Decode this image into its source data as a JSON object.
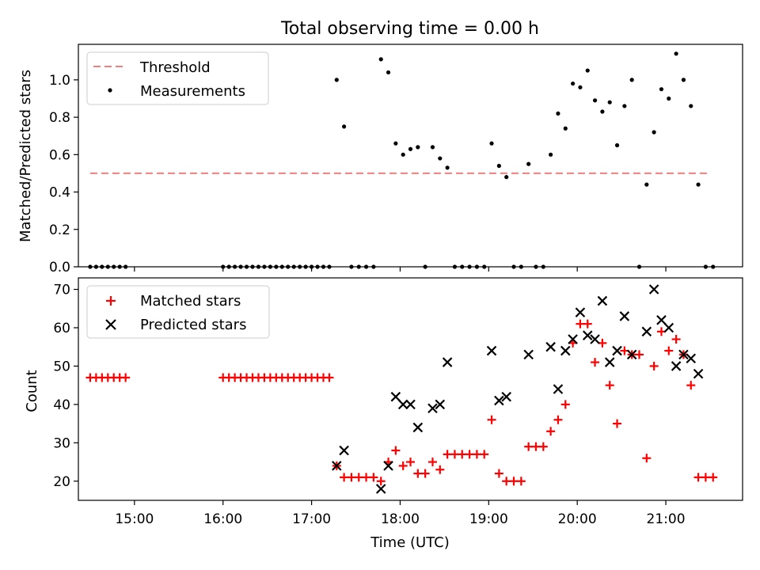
{
  "figure": {
    "title": "Total observing time = 0.00 h"
  },
  "chart_data": [
    {
      "type": "scatter",
      "ylabel": "Matched/Predicted stars",
      "ylim": [
        0,
        1.19
      ],
      "xlim": [
        "14:22",
        "21:52"
      ],
      "yticks": [
        0.0,
        0.2,
        0.4,
        0.6,
        0.8,
        1.0
      ],
      "ytick_labels": [
        "0.0",
        "0.2",
        "0.4",
        "0.6",
        "0.8",
        "1.0"
      ],
      "legend_position": "top-left",
      "threshold": {
        "name": "Threshold",
        "y": 0.5,
        "x_range": [
          "14:30",
          "21:30"
        ],
        "color": "#f08080",
        "style": "dashed"
      },
      "series": [
        {
          "name": "Measurements",
          "color": "#000000",
          "marker": "dot",
          "points": [
            [
              "14:30",
              0
            ],
            [
              "14:34",
              0
            ],
            [
              "14:38",
              0
            ],
            [
              "14:42",
              0
            ],
            [
              "14:46",
              0
            ],
            [
              "14:50",
              0
            ],
            [
              "14:54",
              0
            ],
            [
              "16:00",
              0
            ],
            [
              "16:04",
              0
            ],
            [
              "16:08",
              0
            ],
            [
              "16:12",
              0
            ],
            [
              "16:16",
              0
            ],
            [
              "16:20",
              0
            ],
            [
              "16:24",
              0
            ],
            [
              "16:28",
              0
            ],
            [
              "16:32",
              0
            ],
            [
              "16:36",
              0
            ],
            [
              "16:40",
              0
            ],
            [
              "16:44",
              0
            ],
            [
              "16:48",
              0
            ],
            [
              "16:52",
              0
            ],
            [
              "16:56",
              0
            ],
            [
              "17:00",
              0
            ],
            [
              "17:04",
              0
            ],
            [
              "17:08",
              0
            ],
            [
              "17:12",
              0
            ],
            [
              "17:17",
              1.0
            ],
            [
              "17:22",
              0.75
            ],
            [
              "17:27",
              0
            ],
            [
              "17:32",
              0
            ],
            [
              "17:37",
              0
            ],
            [
              "17:42",
              0
            ],
            [
              "17:47",
              1.11
            ],
            [
              "17:52",
              1.04
            ],
            [
              "17:57",
              0.66
            ],
            [
              "18:02",
              0.6
            ],
            [
              "18:07",
              0.63
            ],
            [
              "18:12",
              0.64
            ],
            [
              "18:17",
              0
            ],
            [
              "18:22",
              0.64
            ],
            [
              "18:27",
              0.58
            ],
            [
              "18:32",
              0.53
            ],
            [
              "18:37",
              0
            ],
            [
              "18:42",
              0
            ],
            [
              "18:47",
              0
            ],
            [
              "18:52",
              0
            ],
            [
              "18:57",
              0
            ],
            [
              "19:02",
              0.66
            ],
            [
              "19:07",
              0.54
            ],
            [
              "19:12",
              0.48
            ],
            [
              "19:17",
              0
            ],
            [
              "19:22",
              0
            ],
            [
              "19:27",
              0.55
            ],
            [
              "19:32",
              0
            ],
            [
              "19:37",
              0
            ],
            [
              "19:42",
              0.6
            ],
            [
              "19:47",
              0.82
            ],
            [
              "19:52",
              0.74
            ],
            [
              "19:57",
              0.98
            ],
            [
              "20:02",
              0.96
            ],
            [
              "20:07",
              1.05
            ],
            [
              "20:12",
              0.89
            ],
            [
              "20:17",
              0.83
            ],
            [
              "20:22",
              0.88
            ],
            [
              "20:27",
              0.65
            ],
            [
              "20:32",
              0.86
            ],
            [
              "20:37",
              1.0
            ],
            [
              "20:42",
              0
            ],
            [
              "20:47",
              0.44
            ],
            [
              "20:52",
              0.72
            ],
            [
              "20:57",
              0.95
            ],
            [
              "21:02",
              0.9
            ],
            [
              "21:07",
              1.14
            ],
            [
              "21:12",
              1.0
            ],
            [
              "21:17",
              0.86
            ],
            [
              "21:22",
              0.44
            ],
            [
              "21:27",
              0
            ],
            [
              "21:32",
              0
            ]
          ]
        }
      ]
    },
    {
      "type": "scatter",
      "xlabel": "Time (UTC)",
      "ylabel": "Count",
      "ylim": [
        15,
        73
      ],
      "xlim": [
        "14:22",
        "21:52"
      ],
      "yticks": [
        20,
        30,
        40,
        50,
        60,
        70
      ],
      "ytick_labels": [
        "20",
        "30",
        "40",
        "50",
        "60",
        "70"
      ],
      "xticks": [
        "15:00",
        "16:00",
        "17:00",
        "18:00",
        "19:00",
        "20:00",
        "21:00"
      ],
      "legend_position": "top-left",
      "series": [
        {
          "name": "Matched stars",
          "color": "#ff0000",
          "marker": "plus",
          "points": [
            [
              "14:30",
              47
            ],
            [
              "14:34",
              47
            ],
            [
              "14:38",
              47
            ],
            [
              "14:42",
              47
            ],
            [
              "14:46",
              47
            ],
            [
              "14:50",
              47
            ],
            [
              "14:54",
              47
            ],
            [
              "16:00",
              47
            ],
            [
              "16:04",
              47
            ],
            [
              "16:08",
              47
            ],
            [
              "16:12",
              47
            ],
            [
              "16:16",
              47
            ],
            [
              "16:20",
              47
            ],
            [
              "16:24",
              47
            ],
            [
              "16:28",
              47
            ],
            [
              "16:32",
              47
            ],
            [
              "16:36",
              47
            ],
            [
              "16:40",
              47
            ],
            [
              "16:44",
              47
            ],
            [
              "16:48",
              47
            ],
            [
              "16:52",
              47
            ],
            [
              "16:56",
              47
            ],
            [
              "17:00",
              47
            ],
            [
              "17:04",
              47
            ],
            [
              "17:08",
              47
            ],
            [
              "17:12",
              47
            ],
            [
              "17:17",
              24
            ],
            [
              "17:22",
              21
            ],
            [
              "17:27",
              21
            ],
            [
              "17:32",
              21
            ],
            [
              "17:37",
              21
            ],
            [
              "17:42",
              21
            ],
            [
              "17:47",
              20
            ],
            [
              "17:52",
              25
            ],
            [
              "17:57",
              28
            ],
            [
              "18:02",
              24
            ],
            [
              "18:07",
              25
            ],
            [
              "18:12",
              22
            ],
            [
              "18:17",
              22
            ],
            [
              "18:22",
              25
            ],
            [
              "18:27",
              23
            ],
            [
              "18:32",
              27
            ],
            [
              "18:37",
              27
            ],
            [
              "18:42",
              27
            ],
            [
              "18:47",
              27
            ],
            [
              "18:52",
              27
            ],
            [
              "18:57",
              27
            ],
            [
              "19:02",
              36
            ],
            [
              "19:07",
              22
            ],
            [
              "19:12",
              20
            ],
            [
              "19:17",
              20
            ],
            [
              "19:22",
              20
            ],
            [
              "19:27",
              29
            ],
            [
              "19:32",
              29
            ],
            [
              "19:37",
              29
            ],
            [
              "19:42",
              33
            ],
            [
              "19:47",
              36
            ],
            [
              "19:52",
              40
            ],
            [
              "19:57",
              56
            ],
            [
              "20:02",
              61
            ],
            [
              "20:07",
              61
            ],
            [
              "20:12",
              51
            ],
            [
              "20:17",
              56
            ],
            [
              "20:22",
              45
            ],
            [
              "20:27",
              35
            ],
            [
              "20:32",
              54
            ],
            [
              "20:37",
              53
            ],
            [
              "20:42",
              53
            ],
            [
              "20:47",
              26
            ],
            [
              "20:52",
              50
            ],
            [
              "20:57",
              59
            ],
            [
              "21:02",
              54
            ],
            [
              "21:07",
              57
            ],
            [
              "21:12",
              53
            ],
            [
              "21:17",
              45
            ],
            [
              "21:22",
              21
            ],
            [
              "21:27",
              21
            ],
            [
              "21:32",
              21
            ]
          ]
        },
        {
          "name": "Predicted stars",
          "color": "#000000",
          "marker": "x",
          "points": [
            [
              "17:17",
              24
            ],
            [
              "17:22",
              28
            ],
            [
              "17:47",
              18
            ],
            [
              "17:52",
              24
            ],
            [
              "17:57",
              42
            ],
            [
              "18:02",
              40
            ],
            [
              "18:07",
              40
            ],
            [
              "18:12",
              34
            ],
            [
              "18:22",
              39
            ],
            [
              "18:27",
              40
            ],
            [
              "18:32",
              51
            ],
            [
              "19:02",
              54
            ],
            [
              "19:07",
              41
            ],
            [
              "19:12",
              42
            ],
            [
              "19:27",
              53
            ],
            [
              "19:42",
              55
            ],
            [
              "19:47",
              44
            ],
            [
              "19:52",
              54
            ],
            [
              "19:57",
              57
            ],
            [
              "20:02",
              64
            ],
            [
              "20:07",
              58
            ],
            [
              "20:12",
              57
            ],
            [
              "20:17",
              67
            ],
            [
              "20:22",
              51
            ],
            [
              "20:27",
              54
            ],
            [
              "20:32",
              63
            ],
            [
              "20:37",
              53
            ],
            [
              "20:47",
              59
            ],
            [
              "20:52",
              70
            ],
            [
              "20:57",
              62
            ],
            [
              "21:02",
              60
            ],
            [
              "21:07",
              50
            ],
            [
              "21:12",
              53
            ],
            [
              "21:17",
              52
            ],
            [
              "21:22",
              48
            ]
          ]
        }
      ]
    }
  ]
}
